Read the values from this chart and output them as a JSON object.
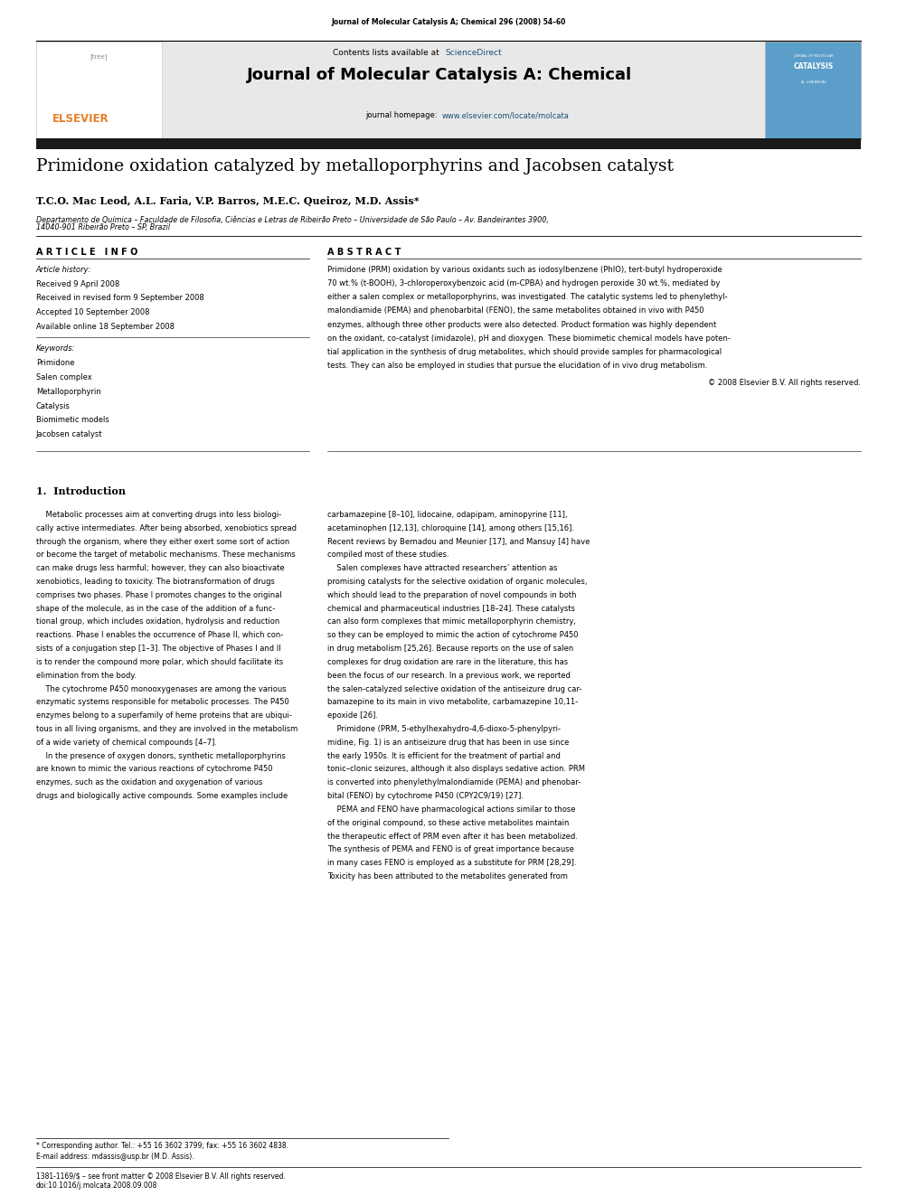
{
  "page_width": 9.92,
  "page_height": 13.23,
  "bg_color": "#ffffff",
  "header_citation": "Journal of Molecular Catalysis A; Chemical 296 (2008) 54–60",
  "journal_title": "Journal of Molecular Catalysis A: Chemical",
  "sciencedirect_color": "#1a5276",
  "homepage_color": "#1a5276",
  "elsevier_color": "#e67e22",
  "header_bg": "#e8e8e8",
  "dark_bar_color": "#1a1a1a",
  "article_title": "Primidone oxidation catalyzed by metalloporphyrins and Jacobsen catalyst",
  "authors": "T.C.O. Mac Leod, A.L. Faria, V.P. Barros, M.E.C. Queiroz, M.D. Assis*",
  "affiliation_line1": "Departamento de Química – Faculdade de Filosofia, Ciências e Letras de Ribeirão Preto – Universidade de São Paulo – Av. Bandeirantes 3900,",
  "affiliation_line2": "14040-901 Ribeirão Preto – SP, Brazil",
  "article_info_label": "A R T I C L E   I N F O",
  "abstract_label": "A B S T R A C T",
  "article_history_label": "Article history:",
  "received": "Received 9 April 2008",
  "revised": "Received in revised form 9 September 2008",
  "accepted": "Accepted 10 September 2008",
  "available": "Available online 18 September 2008",
  "keywords_label": "Keywords:",
  "keywords": [
    "Primidone",
    "Salen complex",
    "Metalloporphyrin",
    "Catalysis",
    "Biomimetic models",
    "Jacobsen catalyst"
  ],
  "copyright": "© 2008 Elsevier B.V. All rights reserved.",
  "section1_title": "1.  Introduction",
  "abstract_lines": [
    "Primidone (PRM) oxidation by various oxidants such as iodosylbenzene (PhIO), tert-butyl hydroperoxide",
    "70 wt.% (t-BOOH), 3-chloroperoxybenzoic acid (m-CPBA) and hydrogen peroxide 30 wt.%, mediated by",
    "either a salen complex or metalloporphyrins, was investigated. The catalytic systems led to phenylethyl-",
    "malondiamide (PEMA) and phenobarbital (FENO), the same metabolites obtained in vivo with P450",
    "enzymes, although three other products were also detected. Product formation was highly dependent",
    "on the oxidant, co-catalyst (imidazole), pH and dioxygen. These biomimetic chemical models have poten-",
    "tial application in the synthesis of drug metabolites, which should provide samples for pharmacological",
    "tests. They can also be employed in studies that pursue the elucidation of in vivo drug metabolism."
  ],
  "intro1_lines": [
    "    Metabolic processes aim at converting drugs into less biologi-",
    "cally active intermediates. After being absorbed, xenobiotics spread",
    "through the organism, where they either exert some sort of action",
    "or become the target of metabolic mechanisms. These mechanisms",
    "can make drugs less harmful; however, they can also bioactivate",
    "xenobiotics, leading to toxicity. The biotransformation of drugs",
    "comprises two phases. Phase I promotes changes to the original",
    "shape of the molecule, as in the case of the addition of a func-",
    "tional group, which includes oxidation, hydrolysis and reduction",
    "reactions. Phase I enables the occurrence of Phase II, which con-",
    "sists of a conjugation step [1–3]. The objective of Phases I and II",
    "is to render the compound more polar, which should facilitate its",
    "elimination from the body.",
    "    The cytochrome P450 monooxygenases are among the various",
    "enzymatic systems responsible for metabolic processes. The P450",
    "enzymes belong to a superfamily of heme proteins that are ubiqui-",
    "tous in all living organisms, and they are involved in the metabolism",
    "of a wide variety of chemical compounds [4–7].",
    "    In the presence of oxygen donors, synthetic metalloporphyrins",
    "are known to mimic the various reactions of cytochrome P450",
    "enzymes, such as the oxidation and oxygenation of various",
    "drugs and biologically active compounds. Some examples include"
  ],
  "intro2_lines": [
    "carbamazepine [8–10], lidocaine, odapipam, aminopyrine [11],",
    "acetaminophen [12,13], chloroquine [14], among others [15,16].",
    "Recent reviews by Bernadou and Meunier [17], and Mansuy [4] have",
    "compiled most of these studies.",
    "    Salen complexes have attracted researchers’ attention as",
    "promising catalysts for the selective oxidation of organic molecules,",
    "which should lead to the preparation of novel compounds in both",
    "chemical and pharmaceutical industries [18–24]. These catalysts",
    "can also form complexes that mimic metalloporphyrin chemistry,",
    "so they can be employed to mimic the action of cytochrome P450",
    "in drug metabolism [25,26]. Because reports on the use of salen",
    "complexes for drug oxidation are rare in the literature, this has",
    "been the focus of our research. In a previous work, we reported",
    "the salen-catalyzed selective oxidation of the antiseizure drug car-",
    "bamazepine to its main in vivo metabolite, carbamazepine 10,11-",
    "epoxide [26].",
    "    Primidone (PRM, 5-ethylhexahydro-4,6-dioxo-5-phenylpyri-",
    "midine, Fig. 1) is an antiseizure drug that has been in use since",
    "the early 1950s. It is efficient for the treatment of partial and",
    "tonic–clonic seizures, although it also displays sedative action. PRM",
    "is converted into phenylethylmalondiamide (PEMA) and phenobar-",
    "bital (FENO) by cytochrome P450 (CPY2C9/19) [27].",
    "    PEMA and FENO have pharmacological actions similar to those",
    "of the original compound, so these active metabolites maintain",
    "the therapeutic effect of PRM even after it has been metabolized.",
    "The synthesis of PEMA and FENO is of great importance because",
    "in many cases FENO is employed as a substitute for PRM [28,29].",
    "Toxicity has been attributed to the metabolites generated from"
  ],
  "footnote1": "* Corresponding author. Tel.: +55 16 3602 3799; fax: +55 16 3602 4838.",
  "footnote2": "E-mail address: mdassis@usp.br (M.D. Assis).",
  "footer1": "1381-1169/$ – see front matter © 2008 Elsevier B.V. All rights reserved.",
  "footer2": "doi:10.1016/j.molcata.2008.09.008"
}
